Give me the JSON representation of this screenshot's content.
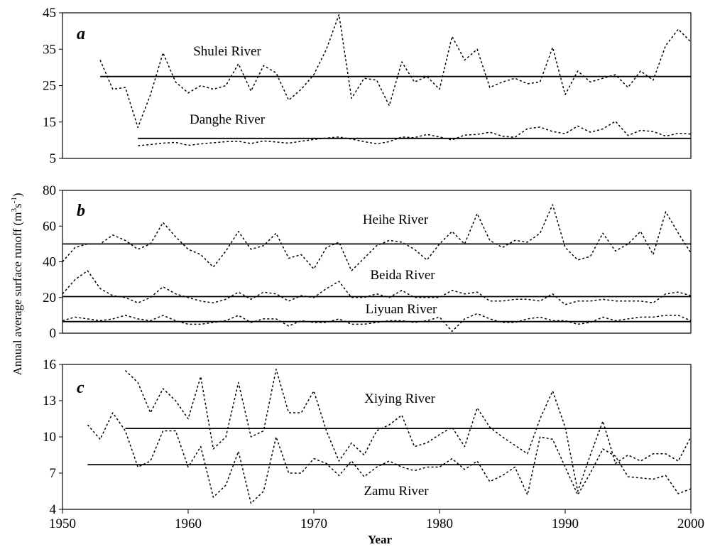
{
  "chart_data": {
    "type": "line",
    "ylabel": "Annual average surface runoff (m³s⁻¹)",
    "ylabel_parts": {
      "main": "Annual average surface runoff (m",
      "sup1": "3",
      "mid": "s",
      "sup2": "-1",
      "end": ")"
    },
    "xlabel": "Year",
    "xlim": [
      1950,
      2000
    ],
    "x_ticks": [
      "1950",
      "1960",
      "1970",
      "1980",
      "1990",
      "2000"
    ],
    "panels": [
      {
        "letter": "a",
        "ylim": [
          5,
          45
        ],
        "y_ticks": [
          "5",
          "15",
          "25",
          "35",
          "45"
        ],
        "series": [
          {
            "name": "Shulei River",
            "mean": 27.5,
            "mean_x": [
              1953,
              2000
            ],
            "x": [
              1953,
              1954,
              1955,
              1956,
              1957,
              1958,
              1959,
              1960,
              1961,
              1962,
              1963,
              1964,
              1965,
              1966,
              1967,
              1968,
              1969,
              1970,
              1971,
              1972,
              1973,
              1974,
              1975,
              1976,
              1977,
              1978,
              1979,
              1980,
              1981,
              1982,
              1983,
              1984,
              1985,
              1986,
              1987,
              1988,
              1989,
              1990,
              1991,
              1992,
              1993,
              1994,
              1995,
              1996,
              1997,
              1998,
              1999,
              2000
            ],
            "values": [
              32,
              24,
              24.5,
              13.5,
              22.5,
              34,
              26,
              23,
              25,
              24,
              25,
              31,
              23.5,
              30.5,
              28.5,
              21,
              24,
              28,
              35,
              44.5,
              21.5,
              27,
              26.5,
              19.5,
              31.5,
              26,
              27.5,
              24,
              38.5,
              32,
              35,
              24.5,
              26,
              27,
              25.5,
              26,
              35.5,
              22.5,
              29,
              26,
              27,
              28,
              24.5,
              29,
              26.5,
              36,
              40.5,
              37
            ]
          },
          {
            "name": "Danghe River",
            "mean": 10.5,
            "mean_x": [
              1956,
              2000
            ],
            "x": [
              1956,
              1957,
              1958,
              1959,
              1960,
              1961,
              1962,
              1963,
              1964,
              1965,
              1966,
              1967,
              1968,
              1969,
              1970,
              1971,
              1972,
              1973,
              1974,
              1975,
              1976,
              1977,
              1978,
              1979,
              1980,
              1981,
              1982,
              1983,
              1984,
              1985,
              1986,
              1987,
              1988,
              1989,
              1990,
              1991,
              1992,
              1993,
              1994,
              1995,
              1996,
              1997,
              1998,
              1999,
              2000
            ],
            "values": [
              8.5,
              8.8,
              9.2,
              9.4,
              8.6,
              9.0,
              9.3,
              9.6,
              9.7,
              9.1,
              9.8,
              9.5,
              9.2,
              9.7,
              10.2,
              10.6,
              10.9,
              10.3,
              9.6,
              9.0,
              9.6,
              10.9,
              10.7,
              11.6,
              10.9,
              10.1,
              11.4,
              11.6,
              12.2,
              11.1,
              10.8,
              13.2,
              13.6,
              12.4,
              11.8,
              13.9,
              12.2,
              13.1,
              15.2,
              11.3,
              12.7,
              12.4,
              11.1,
              11.9,
              11.7
            ]
          }
        ]
      },
      {
        "letter": "b",
        "ylim": [
          0,
          80
        ],
        "y_ticks": [
          "0",
          "20",
          "40",
          "60",
          "80"
        ],
        "series": [
          {
            "name": "Heihe River",
            "mean": 50,
            "mean_x": [
              1950,
              2000
            ],
            "x": [
              1950,
              1951,
              1952,
              1953,
              1954,
              1955,
              1956,
              1957,
              1958,
              1959,
              1960,
              1961,
              1962,
              1963,
              1964,
              1965,
              1966,
              1967,
              1968,
              1969,
              1970,
              1971,
              1972,
              1973,
              1974,
              1975,
              1976,
              1977,
              1978,
              1979,
              1980,
              1981,
              1982,
              1983,
              1984,
              1985,
              1986,
              1987,
              1988,
              1989,
              1990,
              1991,
              1992,
              1993,
              1994,
              1995,
              1996,
              1997,
              1998,
              1999,
              2000
            ],
            "values": [
              40,
              48,
              50,
              50,
              55,
              52,
              47,
              50,
              62,
              54,
              47,
              44,
              37,
              46,
              57,
              47,
              49,
              56,
              42,
              44,
              36,
              48,
              51,
              35,
              42,
              49,
              52,
              51,
              47,
              41,
              50,
              57,
              50,
              67,
              52,
              48,
              52,
              51,
              56,
              72,
              48,
              41,
              43,
              56,
              46,
              50,
              57,
              44,
              68,
              56,
              45
            ]
          },
          {
            "name": "Beida River",
            "mean": 20.5,
            "mean_x": [
              1950,
              2000
            ],
            "x": [
              1950,
              1951,
              1952,
              1953,
              1954,
              1955,
              1956,
              1957,
              1958,
              1959,
              1960,
              1961,
              1962,
              1963,
              1964,
              1965,
              1966,
              1967,
              1968,
              1969,
              1970,
              1971,
              1972,
              1973,
              1974,
              1975,
              1976,
              1977,
              1978,
              1979,
              1980,
              1981,
              1982,
              1983,
              1984,
              1985,
              1986,
              1987,
              1988,
              1989,
              1990,
              1991,
              1992,
              1993,
              1994,
              1995,
              1996,
              1997,
              1998,
              1999,
              2000
            ],
            "values": [
              22,
              30,
              35,
              25,
              21,
              20,
              17,
              20,
              26,
              22,
              20,
              18,
              17,
              19,
              23,
              19,
              23,
              22,
              18,
              21,
              20,
              25,
              29,
              20,
              20,
              22,
              20,
              24,
              20,
              20,
              20,
              24,
              22,
              23,
              18,
              18,
              19,
              19,
              18,
              22,
              16,
              18,
              18,
              19,
              18,
              18,
              18,
              17,
              22,
              23,
              21
            ]
          },
          {
            "name": "Liyuan River",
            "mean": 6.5,
            "mean_x": [
              1950,
              2000
            ],
            "x": [
              1950,
              1951,
              1952,
              1953,
              1954,
              1955,
              1956,
              1957,
              1958,
              1959,
              1960,
              1961,
              1962,
              1963,
              1964,
              1965,
              1966,
              1967,
              1968,
              1969,
              1970,
              1971,
              1972,
              1973,
              1974,
              1975,
              1976,
              1977,
              1978,
              1979,
              1980,
              1981,
              1982,
              1983,
              1984,
              1985,
              1986,
              1987,
              1988,
              1989,
              1990,
              1991,
              1992,
              1993,
              1994,
              1995,
              1996,
              1997,
              1998,
              1999,
              2000
            ],
            "values": [
              7,
              9,
              8,
              7,
              8,
              10,
              8,
              7,
              10,
              7,
              5,
              5,
              6,
              7,
              10,
              6,
              8,
              8,
              4,
              7,
              6,
              6,
              8,
              5,
              5,
              6,
              7,
              7,
              6,
              7,
              9,
              1,
              8,
              11,
              8,
              6,
              6,
              8,
              9,
              7,
              7,
              5,
              6,
              9,
              7,
              8,
              9,
              9,
              10,
              10,
              7
            ]
          }
        ]
      },
      {
        "letter": "c",
        "ylim": [
          4,
          16
        ],
        "y_ticks": [
          "4",
          "7",
          "10",
          "13",
          "16"
        ],
        "series": [
          {
            "name": "Xiying River",
            "mean": 10.7,
            "mean_x": [
              1955,
              2000
            ],
            "x": [
              1955,
              1956,
              1957,
              1958,
              1959,
              1960,
              1961,
              1962,
              1963,
              1964,
              1965,
              1966,
              1967,
              1968,
              1969,
              1970,
              1971,
              1972,
              1973,
              1974,
              1975,
              1976,
              1977,
              1978,
              1979,
              1980,
              1981,
              1982,
              1983,
              1984,
              1985,
              1986,
              1987,
              1988,
              1989,
              1990,
              1991,
              1992,
              1993,
              1994,
              1995,
              1996,
              1997,
              1998,
              1999,
              2000
            ],
            "values": [
              15.5,
              14.5,
              12,
              14,
              13,
              11.5,
              15,
              9,
              10,
              14.5,
              10,
              10.5,
              15.6,
              12,
              12,
              13.8,
              10.5,
              8,
              9.5,
              8.5,
              10.5,
              11,
              11.8,
              9.2,
              9.5,
              10.2,
              10.8,
              9.2,
              12.4,
              10.8,
              10,
              9.3,
              8.6,
              11.5,
              13.8,
              10.8,
              5.5,
              8.5,
              11.3,
              7.8,
              8.5,
              8,
              8.6,
              8.6,
              8,
              10
            ]
          },
          {
            "name": "Zamu River",
            "mean": 7.7,
            "mean_x": [
              1952,
              2000
            ],
            "x": [
              1952,
              1953,
              1954,
              1955,
              1956,
              1957,
              1958,
              1959,
              1960,
              1961,
              1962,
              1963,
              1964,
              1965,
              1966,
              1967,
              1968,
              1969,
              1970,
              1971,
              1972,
              1973,
              1974,
              1975,
              1976,
              1977,
              1978,
              1979,
              1980,
              1981,
              1982,
              1983,
              1984,
              1985,
              1986,
              1987,
              1988,
              1989,
              1990,
              1991,
              1992,
              1993,
              1994,
              1995,
              1996,
              1997,
              1998,
              1999,
              2000
            ],
            "values": [
              11,
              9.8,
              12,
              10.5,
              7.5,
              8,
              10.5,
              10.5,
              7.5,
              9.2,
              5,
              6,
              8.8,
              4.5,
              5.5,
              10,
              7,
              7,
              8.2,
              7.8,
              6.8,
              8,
              6.7,
              7.5,
              8,
              7.5,
              7.2,
              7.5,
              7.5,
              8.2,
              7.3,
              8,
              6.3,
              6.8,
              7.5,
              5.2,
              10,
              9.8,
              7.5,
              5.2,
              7,
              9,
              8.4,
              6.7,
              6.6,
              6.5,
              6.8,
              5.3,
              5.7
            ]
          }
        ]
      }
    ]
  }
}
